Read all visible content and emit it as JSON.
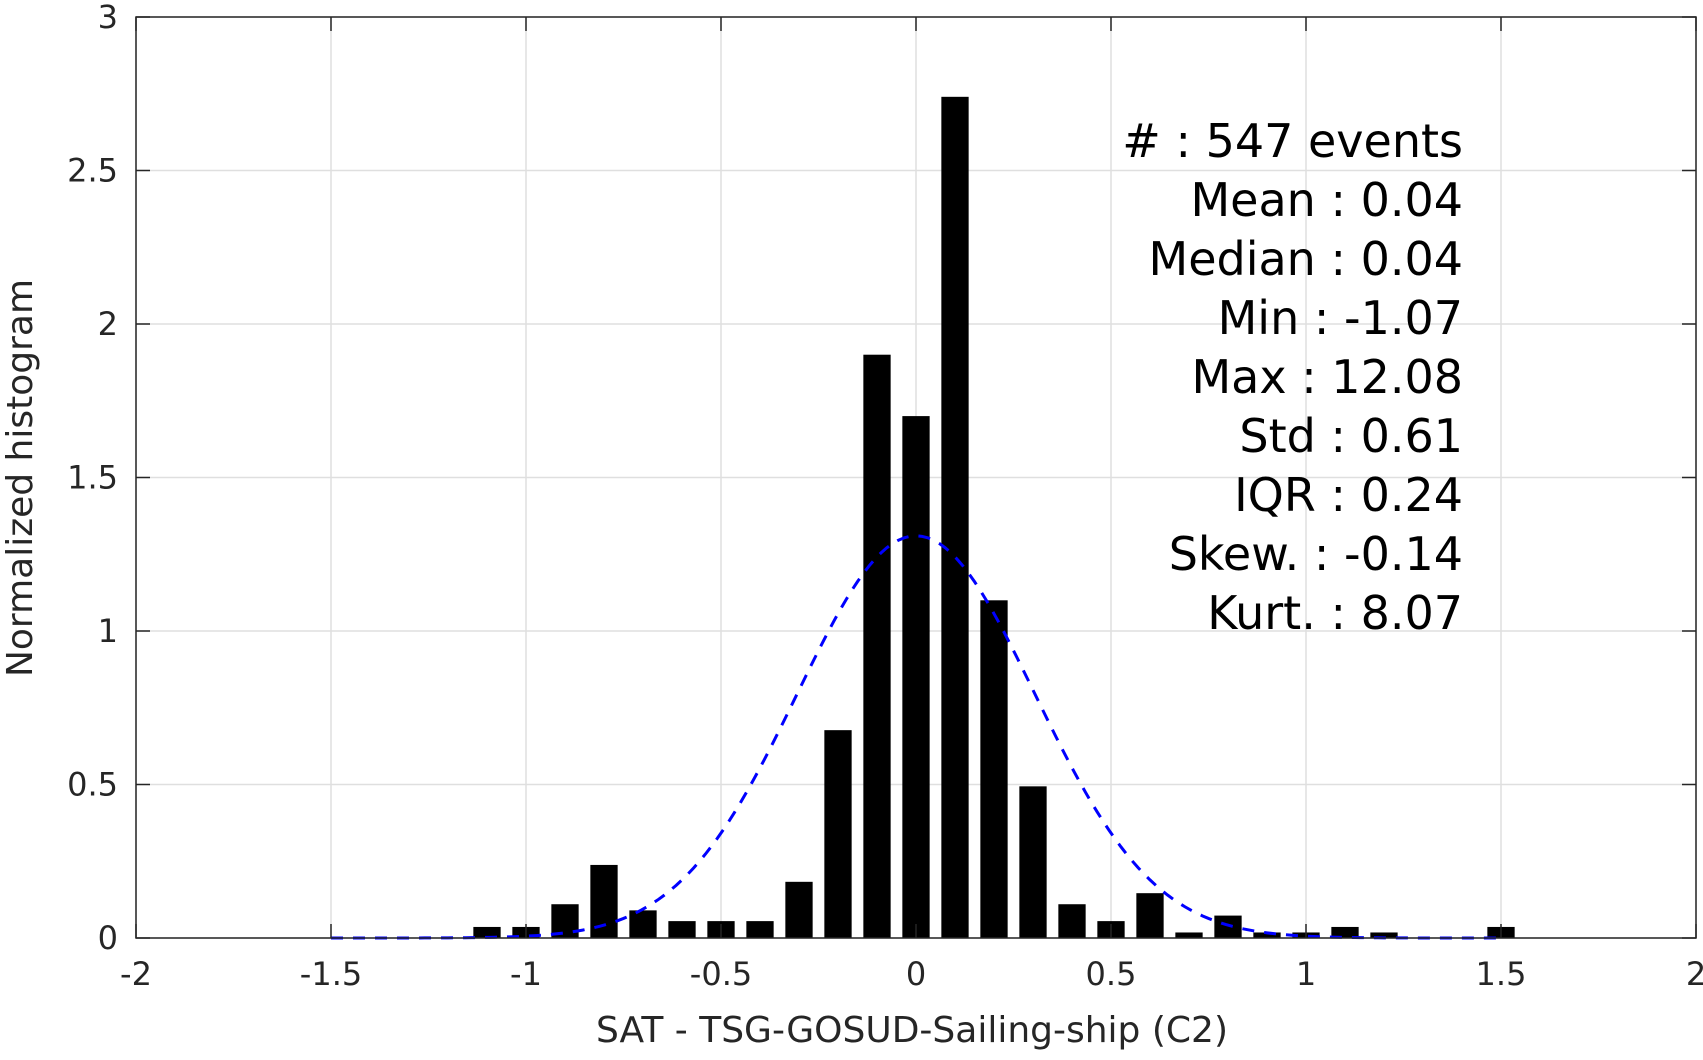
{
  "chart_data": {
    "type": "bar",
    "xlabel": "SAT - TSG-GOSUD-Sailing-ship (C2)",
    "ylabel": "Normalized histogram",
    "xlim": [
      -2,
      2
    ],
    "ylim": [
      0,
      3
    ],
    "xticks": [
      -2,
      -1.5,
      -1,
      -0.5,
      0,
      0.5,
      1,
      1.5,
      2
    ],
    "xtick_labels": [
      "-2",
      "-1.5",
      "-1",
      "-0.5",
      "0",
      "0.5",
      "1",
      "1.5",
      "2"
    ],
    "yticks": [
      0,
      0.5,
      1,
      1.5,
      2,
      2.5,
      3
    ],
    "ytick_labels": [
      "0",
      "0.5",
      "1",
      "1.5",
      "2",
      "2.5",
      "3"
    ],
    "grid": true,
    "bar_width": 0.07,
    "bar_color": "#000000",
    "fit_color": "#0000ff",
    "bars": {
      "x": [
        -1.1,
        -1.0,
        -0.9,
        -0.8,
        -0.7,
        -0.6,
        -0.5,
        -0.4,
        -0.3,
        -0.2,
        -0.1,
        0.0,
        0.1,
        0.2,
        0.3,
        0.4,
        0.5,
        0.6,
        0.7,
        0.8,
        0.9,
        1.0,
        1.1,
        1.2,
        1.5
      ],
      "values": [
        0.036,
        0.036,
        0.11,
        0.238,
        0.09,
        0.055,
        0.055,
        0.055,
        0.183,
        0.677,
        1.9,
        1.7,
        2.74,
        1.1,
        0.494,
        0.11,
        0.055,
        0.146,
        0.018,
        0.073,
        0.018,
        0.018,
        0.036,
        0.018,
        0.036
      ]
    },
    "fit_curve": {
      "style": "dashed",
      "mean": 0.0,
      "std": 0.305,
      "peak": 1.31,
      "x_range": [
        -1.5,
        1.5
      ]
    },
    "stats": [
      {
        "label": "#",
        "value": ": 547 events"
      },
      {
        "label": "Mean",
        "value": ": 0.04"
      },
      {
        "label": "Median",
        "value": ": 0.04"
      },
      {
        "label": "Min",
        "value": ": -1.07"
      },
      {
        "label": "Max",
        "value": ": 12.08"
      },
      {
        "label": "Std",
        "value": ": 0.61"
      },
      {
        "label": "IQR",
        "value": ": 0.24"
      },
      {
        "label": "Skew.",
        "value": ": -0.14"
      },
      {
        "label": "Kurt.",
        "value": ": 8.07"
      }
    ]
  }
}
